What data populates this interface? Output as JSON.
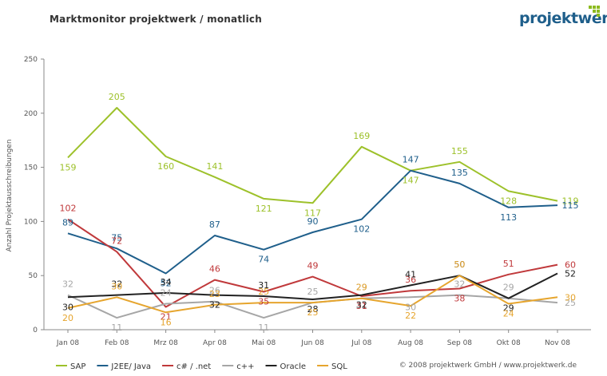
{
  "header": {
    "title": "Marktmonitor projektwerk / monatlich",
    "logo": "projektwerk",
    "copyright": "© 2008 projektwerk GmbH / www.projektwerk.de"
  },
  "chart_data": {
    "type": "line",
    "title": "Marktmonitor projektwerk / monatlich",
    "xlabel": "",
    "ylabel": "Anzahl Projektausschreibungen",
    "ylim": [
      0,
      250
    ],
    "yticks": [
      0,
      50,
      100,
      150,
      200,
      250
    ],
    "grid": false,
    "legend": "bottom",
    "categories": [
      "Jan 08",
      "Feb 08",
      "Mrz 08",
      "Apr 08",
      "Mai 08",
      "Jun 08",
      "Jul 08",
      "Aug 08",
      "Sep 08",
      "Okt 08",
      "Nov 08"
    ],
    "series": [
      {
        "name": "SAP",
        "color": "#9dc12a",
        "values": [
          159,
          205,
          160,
          141,
          121,
          117,
          169,
          147,
          155,
          128,
          119
        ]
      },
      {
        "name": "J2EE/ Java",
        "color": "#1f5f8b",
        "values": [
          89,
          75,
          52,
          87,
          74,
          90,
          102,
          147,
          135,
          113,
          115
        ]
      },
      {
        "name": "c# / .net",
        "color": "#c0393b",
        "values": [
          102,
          72,
          21,
          46,
          35,
          49,
          31,
          36,
          38,
          51,
          60
        ]
      },
      {
        "name": "c++",
        "color": "#a6a6a6",
        "values": [
          32,
          11,
          24,
          26,
          11,
          25,
          29,
          30,
          32,
          29,
          25
        ]
      },
      {
        "name": "Oracle",
        "color": "#222222",
        "values": [
          30,
          32,
          34,
          32,
          31,
          28,
          32,
          41,
          50,
          29,
          52
        ]
      },
      {
        "name": "SQL",
        "color": "#e6a52e",
        "values": [
          20,
          30,
          16,
          23,
          25,
          25,
          29,
          22,
          50,
          24,
          30
        ]
      }
    ]
  }
}
